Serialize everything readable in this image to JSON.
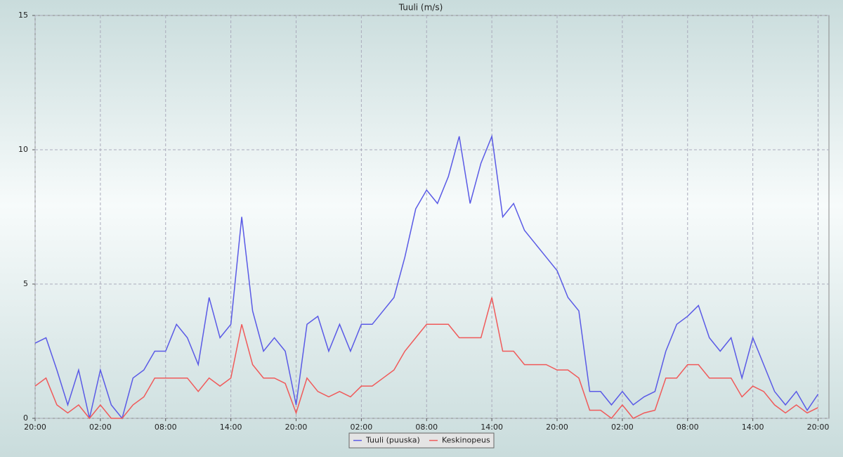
{
  "chart_data": {
    "type": "line",
    "title": "Tuuli (m/s)",
    "x": [
      0,
      1,
      2,
      3,
      4,
      5,
      6,
      7,
      8,
      9,
      10,
      11,
      12,
      13,
      14,
      15,
      16,
      17,
      18,
      19,
      20,
      21,
      22,
      23,
      24,
      25,
      26,
      27,
      28,
      29,
      30,
      31,
      32,
      33,
      34,
      35,
      36,
      37,
      38,
      39,
      40,
      41,
      42,
      43,
      44,
      45,
      46,
      47,
      48,
      49,
      50,
      51,
      52,
      53,
      54,
      55,
      56,
      57,
      58,
      59,
      60,
      61,
      62,
      63,
      64,
      65,
      66,
      67,
      68,
      69,
      70,
      71,
      72
    ],
    "series": [
      {
        "name": "Tuuli (puuska)",
        "color": "#5a5ae6",
        "values": [
          2.8,
          3.0,
          1.8,
          0.5,
          1.8,
          0,
          1.8,
          0.5,
          0,
          1.5,
          1.8,
          2.5,
          2.5,
          3.5,
          3.0,
          2.0,
          4.5,
          3.0,
          3.5,
          7.5,
          4.0,
          2.5,
          3.0,
          2.5,
          0.5,
          3.5,
          3.8,
          2.5,
          3.5,
          2.5,
          3.5,
          3.5,
          4.0,
          4.5,
          6.0,
          7.8,
          8.5,
          8.0,
          9.0,
          10.5,
          8.0,
          9.5,
          10.5,
          7.5,
          8.0,
          7.0,
          6.5,
          6.0,
          5.5,
          4.5,
          4.0,
          1.0,
          1.0,
          0.5,
          1.0,
          0.5,
          0.8,
          1.0,
          2.5,
          3.5,
          3.8,
          4.2,
          3.0,
          2.5,
          3.0,
          1.5,
          3.0,
          2.0,
          1.0,
          0.5,
          1.0,
          0.3,
          0.9
        ]
      },
      {
        "name": "Keskinopeus",
        "color": "#f05a5a",
        "values": [
          1.2,
          1.5,
          0.5,
          0.2,
          0.5,
          0,
          0.5,
          0,
          0,
          0.5,
          0.8,
          1.5,
          1.5,
          1.5,
          1.5,
          1.0,
          1.5,
          1.2,
          1.5,
          3.5,
          2.0,
          1.5,
          1.5,
          1.3,
          0.2,
          1.5,
          1.0,
          0.8,
          1.0,
          0.8,
          1.2,
          1.2,
          1.5,
          1.8,
          2.5,
          3.0,
          3.5,
          3.5,
          3.5,
          3.0,
          3.0,
          3.0,
          4.5,
          2.5,
          2.5,
          2.0,
          2.0,
          2.0,
          1.8,
          1.8,
          1.5,
          0.3,
          0.3,
          0,
          0.5,
          0,
          0.2,
          0.3,
          1.5,
          1.5,
          2.0,
          2.0,
          1.5,
          1.5,
          1.5,
          0.8,
          1.2,
          1.0,
          0.5,
          0.2,
          0.5,
          0.2,
          0.4
        ]
      }
    ],
    "xlim": [
      0,
      73
    ],
    "xticks": [
      {
        "value": 0,
        "label": "20:00"
      },
      {
        "value": 6,
        "label": "02:00"
      },
      {
        "value": 12,
        "label": "08:00"
      },
      {
        "value": 18,
        "label": "14:00"
      },
      {
        "value": 24,
        "label": "20:00"
      },
      {
        "value": 30,
        "label": "02:00"
      },
      {
        "value": 36,
        "label": "08:00"
      },
      {
        "value": 42,
        "label": "14:00"
      },
      {
        "value": 48,
        "label": "20:00"
      },
      {
        "value": 54,
        "label": "02:00"
      },
      {
        "value": 60,
        "label": "08:00"
      },
      {
        "value": 66,
        "label": "14:00"
      },
      {
        "value": 72,
        "label": "20:00"
      }
    ],
    "ylim": [
      0,
      15
    ],
    "yticks": [
      0,
      5,
      10,
      15
    ],
    "grid": true,
    "legend": "bottom"
  }
}
